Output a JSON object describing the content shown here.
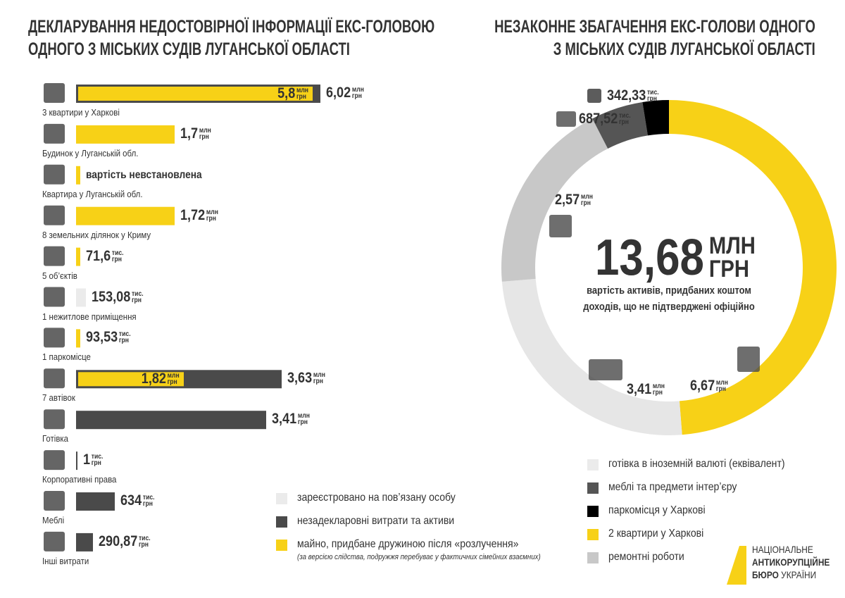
{
  "left": {
    "title": [
      "ДЕКЛАРУВАННЯ НЕДОСТОВІРНОЇ ІНФОРМАЦІЇ ЕКС-ГОЛОВОЮ",
      "ОДНОГО З  МІСЬКИХ СУДІВ ЛУГАНСЬКОЇ ОБЛАСТІ"
    ],
    "items": [
      {
        "label": "3 квартири у Харкові",
        "values": [
          {
            "number": "5,8",
            "unit": "млн",
            "currency": "грн"
          },
          {
            "number": "6,02",
            "unit": "млн",
            "currency": "грн"
          }
        ]
      },
      {
        "label": "Будинок у Луганській обл.",
        "values": [
          {
            "number": "1,7",
            "unit": "млн",
            "currency": "грн"
          }
        ]
      },
      {
        "label": "Квартира у Луганській обл.",
        "note": "вартість невстановлена"
      },
      {
        "label": "8 земельних ділянок у Криму",
        "values": [
          {
            "number": "1,72",
            "unit": "млн",
            "currency": "грн"
          }
        ]
      },
      {
        "label": "5 об’єктів",
        "values": [
          {
            "number": "71,6",
            "unit": "тис.",
            "currency": "грн"
          }
        ]
      },
      {
        "label": "1 нежитлове приміщення",
        "values": [
          {
            "number": "153,08",
            "unit": "тис.",
            "currency": "грн"
          }
        ]
      },
      {
        "label": "1 паркомісце",
        "values": [
          {
            "number": "93,53",
            "unit": "тис.",
            "currency": "грн"
          }
        ]
      },
      {
        "label": "7 автівок",
        "values": [
          {
            "number": "1,82",
            "unit": "млн",
            "currency": "грн"
          },
          {
            "number": "3,63",
            "unit": "млн",
            "currency": "грн"
          }
        ]
      },
      {
        "label": "Готівка",
        "values": [
          {
            "number": "3,41",
            "unit": "млн",
            "currency": "грн"
          }
        ]
      },
      {
        "label": "Корпоративні права",
        "values": [
          {
            "number": "1",
            "unit": "тис.",
            "currency": "грн"
          }
        ]
      },
      {
        "label": "Меблі",
        "values": [
          {
            "number": "634",
            "unit": "тис.",
            "currency": "грн"
          }
        ]
      },
      {
        "label": "Інші витрати",
        "values": [
          {
            "number": "290,87",
            "unit": "тис.",
            "currency": "грн"
          }
        ]
      }
    ],
    "legend": [
      {
        "label": "зареєстровано на пов’язану особу",
        "color": "#ebebeb"
      },
      {
        "label": "незадекларовні витрати та активи",
        "color": "#4a4a4a"
      },
      {
        "label": "майно, придбане дружиною після «розлучення»",
        "color": "#f7d117"
      }
    ],
    "footnote": "(за версією слідства, подружжя перебуває у фактичних сімейних взаємних)"
  },
  "right": {
    "title": [
      "НЕЗАКОННЕ ЗБАГАЧЕННЯ ЕКС-ГОЛОВИ ОДНОГО",
      "З  МІСЬКИХ СУДІВ ЛУГАНСЬКОЇ ОБЛАСТІ"
    ],
    "total": {
      "number": "13,68",
      "unit": "МЛН",
      "currency": "ГРН"
    },
    "caption": [
      "вартість активів, придбаних коштом",
      "доходів, що не підтверджені офіційно"
    ],
    "segments": [
      {
        "number": "6,67",
        "unit": "млн",
        "currency": "грн"
      },
      {
        "number": "3,41",
        "unit": "млн",
        "currency": "грн"
      },
      {
        "number": "2,57",
        "unit": "млн",
        "currency": "грн"
      },
      {
        "number": "687,52",
        "unit": "тис.",
        "currency": "грн"
      },
      {
        "number": "342,33",
        "unit": "тис.",
        "currency": "грн"
      }
    ],
    "legend": [
      {
        "label": "готівка в іноземній валюті (еквівалент)",
        "color": "#ebebeb"
      },
      {
        "label": "меблі та предмети інтер’єру",
        "color": "#555555"
      },
      {
        "label": "паркомісця у Харкові",
        "color": "#000000"
      },
      {
        "label": "2 квартири у Харкові",
        "color": "#f7d117"
      },
      {
        "label": "ремонтні роботи",
        "color": "#c8c8c8"
      }
    ]
  },
  "logo": [
    "НАЦІОНАЛЬНЕ",
    "АНТИКОРУПЦІЙНЕ",
    "БЮРО",
    "УКРАЇНИ"
  ]
}
